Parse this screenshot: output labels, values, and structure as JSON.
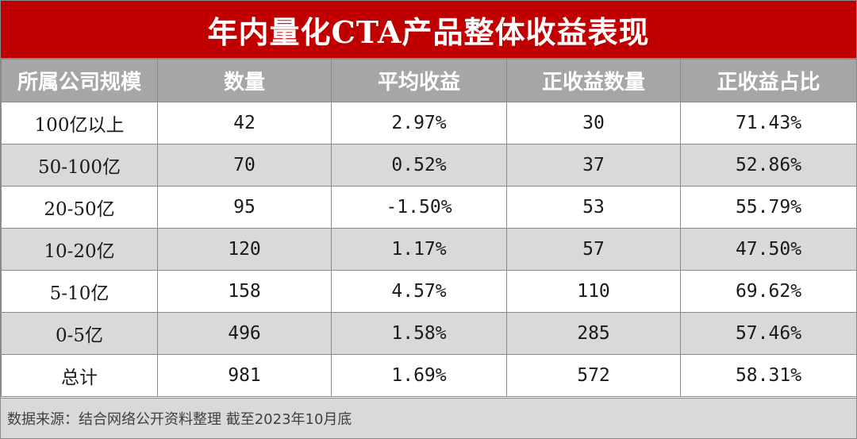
{
  "title": "年内量化CTA产品整体收益表现",
  "colors": {
    "title_bg": "#c00000",
    "header_bg": "#a6a6a6",
    "stripe_bg": "#d9d9d9"
  },
  "table": {
    "headers": [
      "所属公司规模",
      "数量",
      "平均收益",
      "正收益数量",
      "正收益占比"
    ],
    "rows": [
      [
        "100亿以上",
        "42",
        "2.97%",
        "30",
        "71.43%"
      ],
      [
        "50-100亿",
        "70",
        "0.52%",
        "37",
        "52.86%"
      ],
      [
        "20-50亿",
        "95",
        "-1.50%",
        "53",
        "55.79%"
      ],
      [
        "10-20亿",
        "120",
        "1.17%",
        "57",
        "47.50%"
      ],
      [
        "5-10亿",
        "158",
        "4.57%",
        "110",
        "69.62%"
      ],
      [
        "0-5亿",
        "496",
        "1.58%",
        "285",
        "57.46%"
      ],
      [
        "总计",
        "981",
        "1.69%",
        "572",
        "58.31%"
      ]
    ]
  },
  "footer": "数据来源：结合网络公开资料整理 截至2023年10月底"
}
